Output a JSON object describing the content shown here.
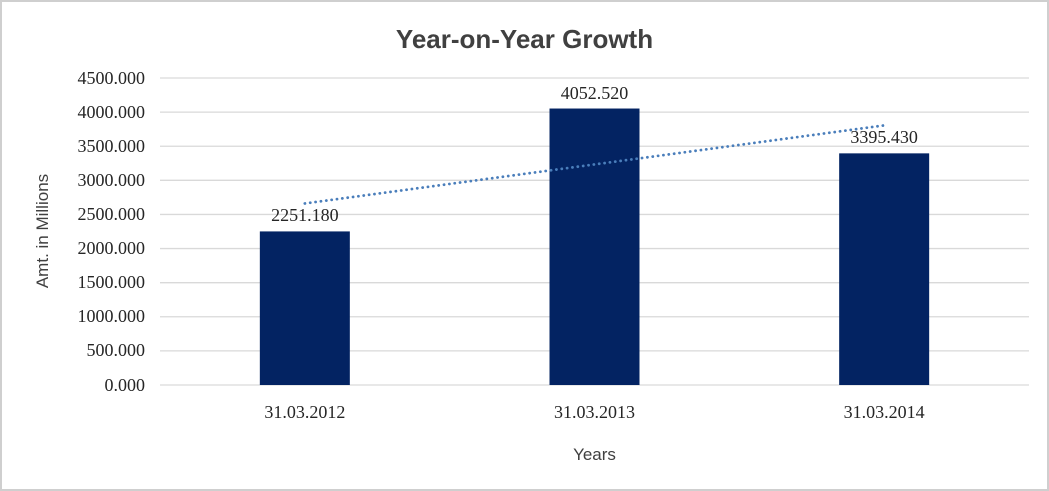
{
  "chart_data": {
    "type": "bar",
    "title": "Year-on-Year Growth",
    "xlabel": "Years",
    "ylabel": "Amt. in Millions",
    "categories": [
      "31.03.2012",
      "31.03.2013",
      "31.03.2014"
    ],
    "values": [
      2251.18,
      4052.52,
      3395.43
    ],
    "value_labels": [
      "2251.180",
      "4052.520",
      "3395.430"
    ],
    "y_ticks": [
      "0.000",
      "500.000",
      "1000.000",
      "1500.000",
      "2000.000",
      "2500.000",
      "3000.000",
      "3500.000",
      "4000.000",
      "4500.000"
    ],
    "ylim": [
      0,
      4500
    ],
    "grid": true,
    "legend": "none",
    "trendline": {
      "type": "linear",
      "style": "dotted"
    },
    "colors": {
      "bar": "#032362",
      "trendline": "#4a7ebb",
      "gridline": "#d9d9d9",
      "title_text": "#404040",
      "label_text": "#262626",
      "frame_border": "#cfcfcf",
      "background": "#ffffff"
    }
  }
}
